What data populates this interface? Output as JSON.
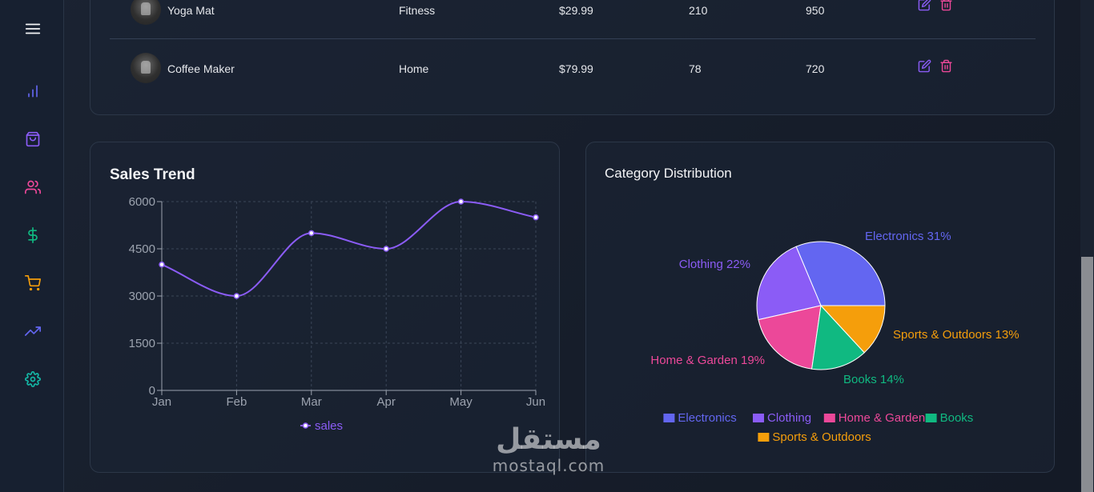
{
  "colors": {
    "accent": "#8b5cf6",
    "electronics": "#6366f1",
    "clothing": "#8b5cf6",
    "home_garden": "#ec4899",
    "books": "#10b981",
    "sports": "#f59e0b",
    "edit_icon": "#8b5cf6",
    "delete_icon": "#ec4899"
  },
  "sidebar": {
    "items": [
      {
        "icon": "menu-icon"
      },
      {
        "icon": "bar-chart-icon",
        "color": "#6366f1"
      },
      {
        "icon": "shopping-bag-icon",
        "color": "#8b5cf6"
      },
      {
        "icon": "users-icon",
        "color": "#ec4899"
      },
      {
        "icon": "dollar-icon",
        "color": "#10b981"
      },
      {
        "icon": "cart-icon",
        "color": "#f59e0b"
      },
      {
        "icon": "trending-up-icon",
        "color": "#6366f1"
      },
      {
        "icon": "settings-icon",
        "color": "#14b8a6"
      }
    ]
  },
  "products": {
    "rows": [
      {
        "name": "Yoga Mat",
        "category": "Fitness",
        "price": "$29.99",
        "stock": "210",
        "sales": "950"
      },
      {
        "name": "Coffee Maker",
        "category": "Home",
        "price": "$79.99",
        "stock": "78",
        "sales": "720"
      }
    ]
  },
  "sales_trend": {
    "title": "Sales Trend",
    "legend_label": "sales"
  },
  "category_distribution": {
    "title": "Category Distribution"
  },
  "chart_data": [
    {
      "type": "line",
      "title": "Sales Trend",
      "x": [
        "Jan",
        "Feb",
        "Mar",
        "Apr",
        "May",
        "Jun"
      ],
      "series": [
        {
          "name": "sales",
          "values": [
            4000,
            3000,
            5000,
            4500,
            6000,
            5500
          ]
        }
      ],
      "yticks": [
        0,
        1500,
        3000,
        4500,
        6000
      ],
      "ylim": [
        0,
        6000
      ],
      "grid": true,
      "smooth": true,
      "legend": "bottom"
    },
    {
      "type": "pie",
      "title": "Category Distribution",
      "slices": [
        {
          "label": "Electronics",
          "value": 31,
          "display": "Electronics 31%"
        },
        {
          "label": "Clothing",
          "value": 22,
          "display": "Clothing 22%"
        },
        {
          "label": "Home & Garden",
          "value": 19,
          "display": "Home & Garden 19%"
        },
        {
          "label": "Books",
          "value": 14,
          "display": "Books 14%"
        },
        {
          "label": "Sports & Outdoors",
          "value": 13,
          "display": "Sports & Outdoors 13%"
        }
      ],
      "legend": "bottom"
    }
  ],
  "watermark": {
    "arabic": "مستقل",
    "latin": "mostaql.com"
  }
}
